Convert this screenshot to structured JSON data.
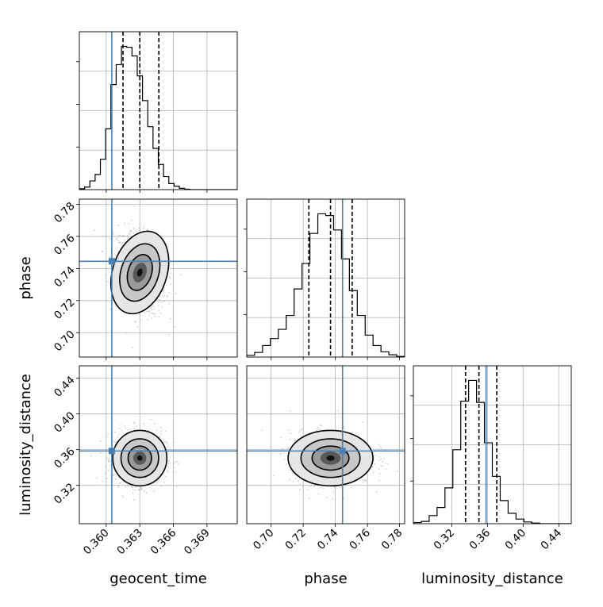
{
  "chart_data": {
    "type": "corner",
    "parameters": [
      {
        "name": "geocent_time",
        "label": "geocent_time",
        "range": [
          0.3576,
          0.3717
        ],
        "ticks": [
          0.36,
          0.363,
          0.366,
          0.369
        ],
        "tick_labels": [
          "0.360",
          "0.363",
          "0.366",
          "0.369"
        ]
      },
      {
        "name": "phase",
        "label": "phase",
        "range": [
          0.6848,
          0.7832
        ],
        "ticks": [
          0.7,
          0.72,
          0.74,
          0.76,
          0.78
        ],
        "tick_labels": [
          "0.70",
          "0.72",
          "0.74",
          "0.76",
          "0.78"
        ]
      },
      {
        "name": "luminosity_distance",
        "label": "luminosity_distance",
        "range": [
          0.277,
          0.454
        ],
        "ticks": [
          0.32,
          0.36,
          0.4,
          0.44
        ],
        "tick_labels": [
          "0.32",
          "0.36",
          "0.40",
          "0.44"
        ]
      }
    ],
    "truths": [
      0.3605,
      0.7445,
      0.3585
    ],
    "truth_color": "#4682b4",
    "quantiles": [
      [
        0.3615,
        0.363,
        0.3647
      ],
      [
        0.7235,
        0.737,
        0.7505
      ],
      [
        0.3355,
        0.3505,
        0.3705
      ]
    ],
    "histograms": [
      {
        "edges": [
          0.3576,
          0.35807,
          0.35854,
          0.35901,
          0.35948,
          0.35995,
          0.36042,
          0.36089,
          0.36136,
          0.36183,
          0.3623,
          0.36277,
          0.36324,
          0.36371,
          0.36418,
          0.36465,
          0.36512,
          0.36559,
          0.36606,
          0.36653,
          0.367,
          0.36747,
          0.36794,
          0.36841,
          0.36888,
          0.36935,
          0.36982,
          0.37029,
          0.37076,
          0.37123,
          0.3717
        ],
        "counts": [
          2,
          6,
          20,
          35,
          70,
          140,
          242,
          288,
          330,
          328,
          308,
          262,
          205,
          145,
          95,
          58,
          30,
          14,
          8,
          3,
          1,
          0,
          0,
          0,
          0,
          0,
          0,
          0,
          0,
          0
        ]
      },
      {
        "edges": [
          0.6848,
          0.68972,
          0.69464,
          0.69956,
          0.70448,
          0.7094,
          0.71432,
          0.71924,
          0.72416,
          0.72908,
          0.734,
          0.73892,
          0.74384,
          0.74876,
          0.75368,
          0.7586,
          0.76352,
          0.76844,
          0.77336,
          0.77828,
          0.7832
        ],
        "counts": [
          3,
          8,
          20,
          32,
          48,
          72,
          118,
          162,
          214,
          248,
          245,
          220,
          170,
          115,
          72,
          38,
          20,
          9,
          4,
          1
        ]
      },
      {
        "edges": [
          0.277,
          0.28585,
          0.2947,
          0.30355,
          0.3124,
          0.32125,
          0.3301,
          0.33895,
          0.3478,
          0.35665,
          0.3655,
          0.37435,
          0.3832,
          0.39205,
          0.4009,
          0.40975,
          0.4186,
          0.42745,
          0.4363,
          0.44515,
          0.454
        ],
        "counts": [
          2,
          4,
          14,
          28,
          62,
          128,
          212,
          248,
          210,
          140,
          82,
          40,
          18,
          8,
          3,
          1,
          0,
          0,
          0,
          0
        ]
      }
    ],
    "contour_pairs": [
      {
        "x": "geocent_time",
        "y": "phase",
        "center": [
          0.363,
          0.7375
        ],
        "sigma": [
          0.00105,
          0.0115
        ],
        "rho": -0.28,
        "levels": [
          1.0,
          1.6,
          2.3
        ]
      },
      {
        "x": "geocent_time",
        "y": "luminosity_distance",
        "center": [
          0.363,
          0.3505
        ],
        "sigma": [
          0.00105,
          0.0135
        ],
        "rho": 0.0,
        "levels": [
          1.0,
          1.6,
          2.3
        ]
      },
      {
        "x": "phase",
        "y": "luminosity_distance",
        "center": [
          0.737,
          0.3505
        ],
        "sigma": [
          0.0115,
          0.0135
        ],
        "rho": 0.0,
        "levels": [
          1.0,
          1.6,
          2.3
        ]
      }
    ],
    "grid": true
  }
}
